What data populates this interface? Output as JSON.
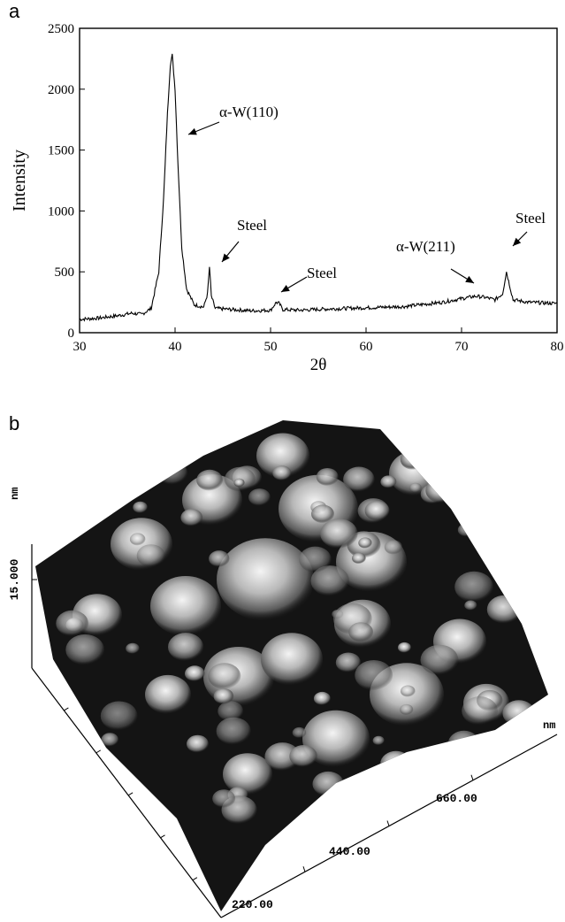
{
  "panels": {
    "a": "a",
    "b": "b"
  },
  "chart_data": [
    {
      "type": "line",
      "panel": "a",
      "xlabel": "2θ",
      "ylabel": "Intensity",
      "xlim": [
        30,
        80
      ],
      "ylim": [
        0,
        2500
      ],
      "xticks": [
        "30",
        "40",
        "50",
        "60",
        "70",
        "80"
      ],
      "yticks": [
        "0",
        "500",
        "1000",
        "1500",
        "2000",
        "2500"
      ],
      "grid": false,
      "series": [
        {
          "x": [
            30,
            32,
            34,
            35.5,
            36.5,
            37.5,
            38.3,
            38.8,
            39.2,
            39.5,
            39.7,
            40.0,
            40.3,
            40.7,
            41.2,
            42.0,
            43.0,
            43.4,
            43.6,
            43.8,
            44.2,
            46,
            48,
            50,
            50.6,
            50.9,
            51.3,
            53,
            56,
            60,
            64,
            68,
            70,
            71.5,
            72.5,
            73.5,
            74.3,
            74.7,
            75.0,
            75.4,
            77,
            80
          ],
          "values": [
            110,
            120,
            140,
            160,
            150,
            200,
            500,
            1100,
            1800,
            2200,
            2280,
            2000,
            1400,
            700,
            360,
            230,
            210,
            320,
            540,
            300,
            200,
            190,
            180,
            185,
            250,
            240,
            190,
            185,
            195,
            205,
            215,
            250,
            280,
            300,
            290,
            270,
            320,
            500,
            400,
            270,
            250,
            240
          ]
        }
      ],
      "annotations": [
        {
          "text": "α-W(110)",
          "x": 40.5,
          "y": 1800
        },
        {
          "text": "Steel",
          "x": 44.3,
          "y": 530
        },
        {
          "text": "Steel",
          "x": 51.0,
          "y": 320
        },
        {
          "text": "α-W(211)",
          "x": 72.5,
          "y": 330
        },
        {
          "text": "Steel",
          "x": 75.2,
          "y": 560
        }
      ]
    },
    {
      "type": "surface",
      "panel": "b",
      "z_axis_label": "15.000",
      "z_unit": "nm",
      "axis_unit": "nm",
      "axis_ticks": [
        "220.00",
        "440.00",
        "660.00"
      ]
    }
  ]
}
